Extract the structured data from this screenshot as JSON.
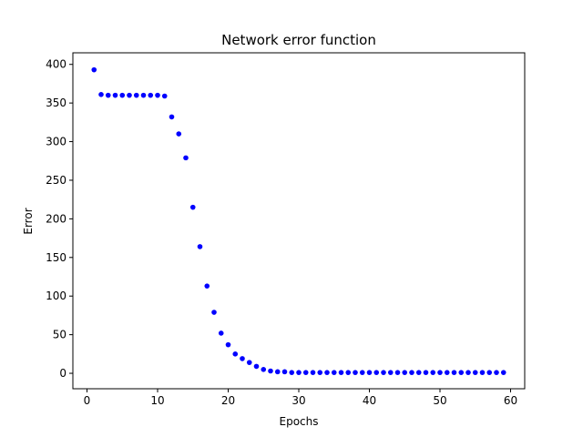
{
  "chart_data": {
    "type": "scatter",
    "title": "Network error function",
    "xlabel": "Epochs",
    "ylabel": "Error",
    "xlim": [
      -2,
      62
    ],
    "ylim": [
      -20,
      415
    ],
    "x_ticks": [
      0,
      10,
      20,
      30,
      40,
      50,
      60
    ],
    "y_ticks": [
      0,
      50,
      100,
      150,
      200,
      250,
      300,
      350,
      400
    ],
    "grid": false,
    "legend": "none",
    "marker_color": "#0000ff",
    "x": [
      1,
      2,
      3,
      4,
      5,
      6,
      7,
      8,
      9,
      10,
      11,
      12,
      13,
      14,
      15,
      16,
      17,
      18,
      19,
      20,
      21,
      22,
      23,
      24,
      25,
      26,
      27,
      28,
      29,
      30,
      31,
      32,
      33,
      34,
      35,
      36,
      37,
      38,
      39,
      40,
      41,
      42,
      43,
      44,
      45,
      46,
      47,
      48,
      49,
      50,
      51,
      52,
      53,
      54,
      55,
      56,
      57,
      58,
      59
    ],
    "y": [
      393,
      361,
      360,
      360,
      360,
      360,
      360,
      360,
      360,
      360,
      359,
      332,
      310,
      279,
      215,
      164,
      113,
      79,
      52,
      37,
      25,
      19,
      14,
      9,
      5,
      3,
      2,
      2,
      1,
      1,
      1,
      1,
      1,
      1,
      1,
      1,
      1,
      1,
      1,
      1,
      1,
      1,
      1,
      1,
      1,
      1,
      1,
      1,
      1,
      1,
      1,
      1,
      1,
      1,
      1,
      1,
      1,
      1,
      1
    ]
  }
}
